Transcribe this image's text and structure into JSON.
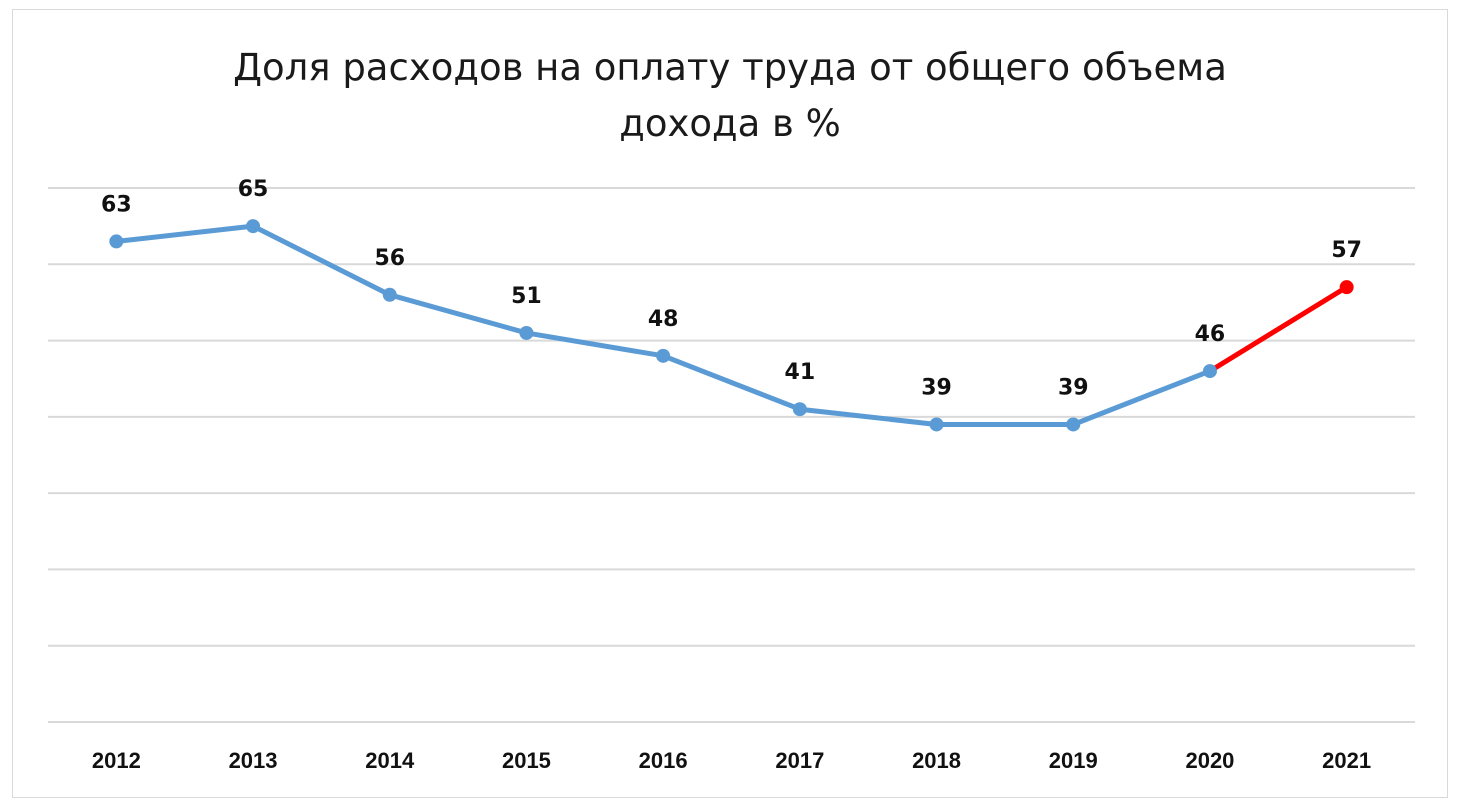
{
  "chart_data": {
    "type": "line",
    "title_lines": [
      "Доля расходов на оплату труда от общего объема",
      "дохода в %"
    ],
    "categories": [
      "2012",
      "2013",
      "2014",
      "2015",
      "2016",
      "2017",
      "2018",
      "2019",
      "2020",
      "2021"
    ],
    "series": [
      {
        "values": [
          63,
          65,
          56,
          51,
          48,
          41,
          39,
          39,
          46,
          57
        ],
        "color": "#5b9bd5",
        "highlight_last_segment_color": "#ff0000"
      }
    ],
    "ylim": [
      0,
      70
    ],
    "gridlines": true,
    "y_tick_labels_shown": false,
    "data_labels": true,
    "legend": "none"
  }
}
